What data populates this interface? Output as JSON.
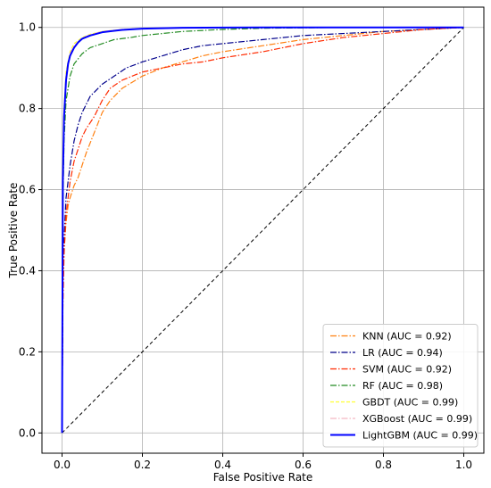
{
  "chart_data": {
    "type": "line",
    "title": "",
    "xlabel": "False Positive Rate",
    "ylabel": "True Positive Rate",
    "xlim": [
      -0.05,
      1.05
    ],
    "ylim": [
      -0.05,
      1.05
    ],
    "grid": true,
    "legend_position": "bottom-right",
    "xticks": [
      "0.0",
      "0.2",
      "0.4",
      "0.6",
      "0.8",
      "1.0"
    ],
    "yticks": [
      "0.0",
      "0.2",
      "0.4",
      "0.6",
      "0.8",
      "1.0"
    ],
    "diagonal": {
      "x": [
        0,
        1
      ],
      "y": [
        0,
        1
      ],
      "color": "#000000",
      "style": "dashed"
    },
    "series": [
      {
        "name": "KNN (AUC = 0.92)",
        "color": "#ff7f0e",
        "style": "dashdot",
        "x": [
          0,
          0.002,
          0.005,
          0.01,
          0.015,
          0.02,
          0.03,
          0.04,
          0.05,
          0.06,
          0.08,
          0.1,
          0.12,
          0.15,
          0.2,
          0.25,
          0.3,
          0.35,
          0.4,
          0.5,
          0.6,
          0.7,
          0.8,
          0.9,
          1.0
        ],
        "y": [
          0,
          0.35,
          0.45,
          0.52,
          0.56,
          0.58,
          0.61,
          0.63,
          0.66,
          0.69,
          0.74,
          0.79,
          0.82,
          0.85,
          0.88,
          0.9,
          0.915,
          0.93,
          0.94,
          0.955,
          0.97,
          0.98,
          0.99,
          0.995,
          1.0
        ]
      },
      {
        "name": "LR (AUC = 0.94)",
        "color": "#00008b",
        "style": "dashdot",
        "x": [
          0,
          0.002,
          0.005,
          0.01,
          0.02,
          0.03,
          0.04,
          0.05,
          0.07,
          0.1,
          0.13,
          0.16,
          0.2,
          0.25,
          0.3,
          0.35,
          0.4,
          0.5,
          0.6,
          0.7,
          0.8,
          0.9,
          1.0
        ],
        "y": [
          0,
          0.35,
          0.48,
          0.58,
          0.66,
          0.72,
          0.76,
          0.79,
          0.83,
          0.86,
          0.88,
          0.9,
          0.915,
          0.93,
          0.945,
          0.955,
          0.96,
          0.97,
          0.98,
          0.985,
          0.99,
          0.995,
          1.0
        ]
      },
      {
        "name": "SVM (AUC = 0.92)",
        "color": "#ff2a00",
        "style": "dashdot",
        "x": [
          0,
          0.002,
          0.005,
          0.01,
          0.02,
          0.03,
          0.04,
          0.05,
          0.06,
          0.08,
          0.1,
          0.12,
          0.15,
          0.2,
          0.25,
          0.3,
          0.35,
          0.4,
          0.5,
          0.6,
          0.7,
          0.8,
          0.9,
          1.0
        ],
        "y": [
          0,
          0.3,
          0.44,
          0.54,
          0.62,
          0.67,
          0.7,
          0.73,
          0.75,
          0.78,
          0.82,
          0.85,
          0.87,
          0.89,
          0.9,
          0.91,
          0.915,
          0.925,
          0.94,
          0.96,
          0.975,
          0.985,
          0.995,
          1.0
        ]
      },
      {
        "name": "RF (AUC = 0.98)",
        "color": "#228b22",
        "style": "dashdot",
        "x": [
          0,
          0.002,
          0.005,
          0.01,
          0.02,
          0.03,
          0.05,
          0.07,
          0.1,
          0.13,
          0.17,
          0.2,
          0.25,
          0.3,
          0.4,
          0.5,
          0.7,
          1.0
        ],
        "y": [
          0,
          0.55,
          0.72,
          0.82,
          0.88,
          0.91,
          0.935,
          0.95,
          0.96,
          0.97,
          0.975,
          0.98,
          0.985,
          0.99,
          0.995,
          0.998,
          1.0,
          1.0
        ]
      },
      {
        "name": "GBDT (AUC = 0.99)",
        "color": "#ffff33",
        "style": "dashed",
        "x": [
          0,
          0.002,
          0.005,
          0.01,
          0.02,
          0.03,
          0.05,
          0.07,
          0.1,
          0.15,
          0.2,
          0.3,
          0.5,
          0.7,
          1.0
        ],
        "y": [
          0,
          0.65,
          0.8,
          0.89,
          0.94,
          0.96,
          0.975,
          0.983,
          0.99,
          0.995,
          0.997,
          0.999,
          1.0,
          1.0,
          1.0
        ]
      },
      {
        "name": "XGBoost (AUC = 0.99)",
        "color": "#f4b6c2",
        "style": "dashdot",
        "x": [
          0,
          0.002,
          0.005,
          0.01,
          0.02,
          0.03,
          0.05,
          0.07,
          0.1,
          0.15,
          0.2,
          0.3,
          0.5,
          0.7,
          1.0
        ],
        "y": [
          0,
          0.64,
          0.79,
          0.88,
          0.935,
          0.955,
          0.973,
          0.982,
          0.99,
          0.995,
          0.997,
          0.999,
          1.0,
          1.0,
          1.0
        ]
      },
      {
        "name": "LightGBM (AUC = 0.99)",
        "color": "#0000ff",
        "style": "solid",
        "x": [
          0,
          0.002,
          0.005,
          0.01,
          0.015,
          0.02,
          0.03,
          0.04,
          0.05,
          0.07,
          0.1,
          0.15,
          0.2,
          0.3,
          0.5,
          0.7,
          1.0
        ],
        "y": [
          0,
          0.62,
          0.78,
          0.87,
          0.91,
          0.93,
          0.95,
          0.963,
          0.972,
          0.98,
          0.988,
          0.994,
          0.997,
          0.999,
          1.0,
          1.0,
          1.0
        ]
      }
    ]
  }
}
